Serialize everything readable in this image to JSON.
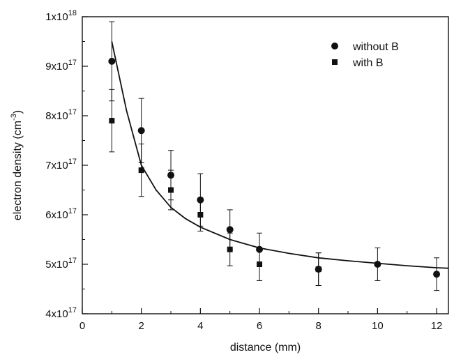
{
  "chart_data": {
    "type": "scatter",
    "title": "",
    "xlabel": "distance (mm)",
    "ylabel": "electron density (cm",
    "ylabel_sup": "-3",
    "ylabel_suffix": ")",
    "xlim": [
      0,
      12.4
    ],
    "ylim": [
      4e+17,
      1e+18
    ],
    "x_ticks": [
      0,
      2,
      4,
      6,
      8,
      10,
      12
    ],
    "y_ticks": [
      {
        "value": 4e+17,
        "mant": "4x10",
        "exp": "17"
      },
      {
        "value": 5e+17,
        "mant": "5x10",
        "exp": "17"
      },
      {
        "value": 6e+17,
        "mant": "6x10",
        "exp": "17"
      },
      {
        "value": 7e+17,
        "mant": "7x10",
        "exp": "17"
      },
      {
        "value": 8e+17,
        "mant": "8x10",
        "exp": "17"
      },
      {
        "value": 9e+17,
        "mant": "9x10",
        "exp": "17"
      },
      {
        "value": 1e+18,
        "mant": "1x10",
        "exp": "18"
      }
    ],
    "grid": false,
    "legend_position": "top-right",
    "series": [
      {
        "name": "without B",
        "marker": "circle",
        "points": [
          {
            "x": 1,
            "y": 9.1e+17,
            "err": 8e+16
          },
          {
            "x": 2,
            "y": 7.7e+17,
            "err": 6.5e+16
          },
          {
            "x": 3,
            "y": 6.8e+17,
            "err": 5e+16
          },
          {
            "x": 4,
            "y": 6.3e+17,
            "err": 5.3e+16
          },
          {
            "x": 5,
            "y": 5.7e+17,
            "err": 4e+16
          },
          {
            "x": 6,
            "y": 5.3e+17,
            "err": 3.3e+16
          },
          {
            "x": 8,
            "y": 4.9e+17,
            "err": 3.3e+16
          },
          {
            "x": 10,
            "y": 5e+17,
            "err": 3.3e+16
          },
          {
            "x": 12,
            "y": 4.8e+17,
            "err": 3.3e+16
          }
        ]
      },
      {
        "name": "with B",
        "marker": "square",
        "points": [
          {
            "x": 1,
            "y": 7.9e+17,
            "err": 6.3e+16
          },
          {
            "x": 2,
            "y": 6.9e+17,
            "err": 5.3e+16
          },
          {
            "x": 3,
            "y": 6.5e+17,
            "err": 4e+16
          },
          {
            "x": 4,
            "y": 6e+17,
            "err": 3.3e+16
          },
          {
            "x": 5,
            "y": 5.3e+17,
            "err": 3.3e+16
          },
          {
            "x": 6,
            "y": 5e+17,
            "err": 3.3e+16
          },
          {
            "x": 8,
            "y": 4.9e+17,
            "err": 3.3e+16
          }
        ]
      }
    ],
    "fit_curve": {
      "x": [
        1,
        1.5,
        2,
        2.5,
        3,
        3.5,
        4,
        5,
        6,
        7,
        8,
        9,
        10,
        11,
        12,
        12.4
      ],
      "y": [
        9.5e+17,
        8.1e+17,
        7e+17,
        6.5e+17,
        6.15e+17,
        5.92e+17,
        5.75e+17,
        5.5e+17,
        5.33e+17,
        5.22e+17,
        5.13e+17,
        5.07e+17,
        5.02e+17,
        4.97e+17,
        4.93e+17,
        4.92e+17
      ]
    }
  }
}
